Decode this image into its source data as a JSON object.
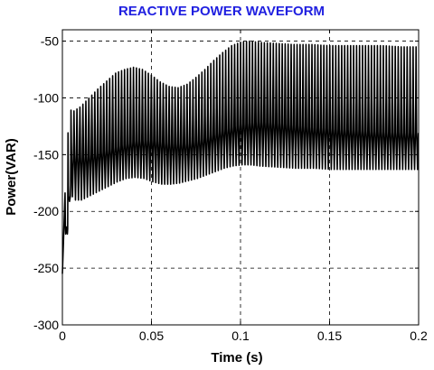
{
  "chart_data": {
    "type": "line",
    "title": "REACTIVE POWER WAVEFORM",
    "xlabel": "Time (s)",
    "ylabel": "Power(VAR)",
    "xlim": [
      0,
      0.2
    ],
    "ylim": [
      -300,
      -40
    ],
    "xticks": [
      0,
      0.05,
      0.1,
      0.15,
      0.2
    ],
    "xtick_labels": [
      "0",
      "0.05",
      "0.1",
      "0.15",
      "0.2"
    ],
    "yticks": [
      -300,
      -250,
      -200,
      -150,
      -100,
      -50
    ],
    "ytick_labels": [
      "-300",
      "-250",
      "-200",
      "-150",
      "-100",
      "-50"
    ],
    "grid": true,
    "oscillation_period_s": 0.00167,
    "series": [
      {
        "name": "",
        "color": "#000000",
        "upper_envelope": {
          "x": [
            0.0,
            0.002,
            0.004,
            0.006,
            0.01,
            0.015,
            0.02,
            0.025,
            0.03,
            0.035,
            0.04,
            0.045,
            0.05,
            0.055,
            0.06,
            0.065,
            0.07,
            0.075,
            0.08,
            0.085,
            0.09,
            0.095,
            0.1,
            0.105,
            0.11,
            0.12,
            0.13,
            0.14,
            0.15,
            0.16,
            0.17,
            0.18,
            0.19,
            0.2
          ],
          "y": [
            -255,
            -160,
            -110,
            -112,
            -108,
            -100,
            -92,
            -85,
            -78,
            -75,
            -73,
            -75,
            -80,
            -86,
            -90,
            -91,
            -88,
            -82,
            -75,
            -67,
            -60,
            -54,
            -51,
            -50,
            -51,
            -52,
            -53,
            -53,
            -54,
            -54,
            -54,
            -54,
            -55,
            -55
          ]
        },
        "lower_envelope": {
          "x": [
            0.0,
            0.002,
            0.004,
            0.006,
            0.01,
            0.015,
            0.02,
            0.025,
            0.03,
            0.035,
            0.04,
            0.045,
            0.05,
            0.055,
            0.06,
            0.065,
            0.07,
            0.075,
            0.08,
            0.085,
            0.09,
            0.095,
            0.1,
            0.105,
            0.11,
            0.12,
            0.13,
            0.14,
            0.15,
            0.16,
            0.17,
            0.18,
            0.19,
            0.2
          ],
          "y": [
            -255,
            -200,
            -185,
            -190,
            -190,
            -186,
            -182,
            -178,
            -174,
            -171,
            -170,
            -171,
            -174,
            -176,
            -176,
            -175,
            -173,
            -171,
            -168,
            -165,
            -162,
            -160,
            -159,
            -159,
            -160,
            -161,
            -162,
            -162,
            -163,
            -163,
            -163,
            -163,
            -163,
            -163
          ]
        },
        "upper_mid": {
          "x": [
            0.0,
            0.005,
            0.01,
            0.02,
            0.03,
            0.04,
            0.05,
            0.06,
            0.07,
            0.08,
            0.09,
            0.1,
            0.11,
            0.12,
            0.14,
            0.16,
            0.18,
            0.2
          ],
          "y": [
            -250,
            -135,
            -130,
            -122,
            -113,
            -108,
            -110,
            -118,
            -120,
            -115,
            -102,
            -93,
            -90,
            -92,
            -97,
            -100,
            -103,
            -105
          ]
        },
        "lower_mid": {
          "x": [
            0.0,
            0.005,
            0.01,
            0.02,
            0.03,
            0.04,
            0.05,
            0.06,
            0.07,
            0.08,
            0.09,
            0.1,
            0.11,
            0.12,
            0.14,
            0.16,
            0.18,
            0.2
          ],
          "y": [
            -250,
            -150,
            -152,
            -148,
            -143,
            -138,
            -137,
            -140,
            -140,
            -135,
            -128,
            -123,
            -121,
            -122,
            -126,
            -128,
            -130,
            -131
          ]
        }
      }
    ]
  }
}
